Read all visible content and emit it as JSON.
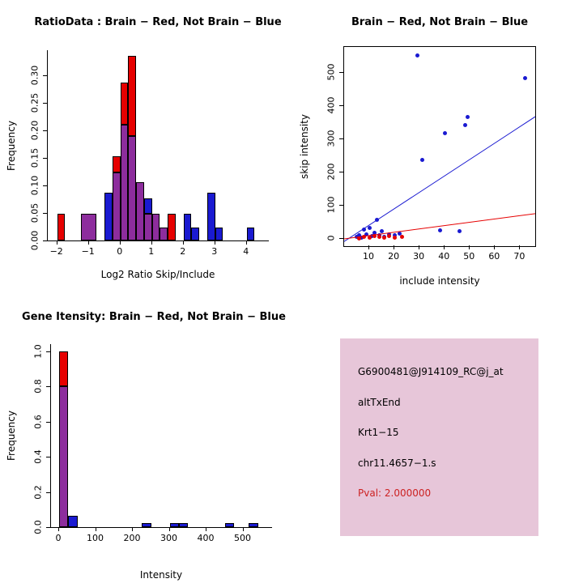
{
  "palette": {
    "red": "#e60000",
    "blue": "#1a1ad1",
    "purple": "#8d2d9d",
    "axis_black": "#000000",
    "info_box_pink": "#e7c6d9",
    "pval_red": "#cc2222"
  },
  "chart_data": [
    {
      "id": "ratio-histogram",
      "type": "bar",
      "title": "RatioData : Brain − Red, Not Brain − Blue",
      "xlabel": "Log2 Ratio Skip/Include",
      "ylabel": "Frequency",
      "xlim": [
        -2.3,
        4.7
      ],
      "ylim": [
        0,
        0.345
      ],
      "grid": false,
      "xticks": [
        -2,
        -1,
        0,
        1,
        2,
        3,
        4
      ],
      "xtick_labels": [
        "−2",
        "−1",
        "0",
        "1",
        "2",
        "3",
        "4"
      ],
      "yticks": [
        0,
        0.05,
        0.1,
        0.15,
        0.2,
        0.25,
        0.3
      ],
      "ytick_labels": [
        "0.00",
        "0.05",
        "0.10",
        "0.15",
        "0.20",
        "0.25",
        "0.30"
      ],
      "bars": [
        {
          "x0": -2.0,
          "x1": -1.75,
          "segments": [
            {
              "color": "red",
              "h": 0.048
            }
          ]
        },
        {
          "x0": -1.25,
          "x1": -0.75,
          "segments": [
            {
              "color": "purple",
              "h": 0.048
            }
          ]
        },
        {
          "x0": -0.5,
          "x1": -0.25,
          "segments": [
            {
              "color": "blue",
              "h": 0.086
            }
          ]
        },
        {
          "x0": -0.25,
          "x1": 0,
          "segments": [
            {
              "color": "purple",
              "h": 0.124
            },
            {
              "color": "red",
              "h": 0.028
            }
          ]
        },
        {
          "x0": 0,
          "x1": 0.25,
          "segments": [
            {
              "color": "purple",
              "h": 0.21
            },
            {
              "color": "red",
              "h": 0.076
            }
          ]
        },
        {
          "x0": 0.25,
          "x1": 0.5,
          "segments": [
            {
              "color": "purple",
              "h": 0.19
            },
            {
              "color": "red",
              "h": 0.145
            }
          ]
        },
        {
          "x0": 0.5,
          "x1": 0.75,
          "segments": [
            {
              "color": "purple",
              "h": 0.105
            }
          ]
        },
        {
          "x0": 0.75,
          "x1": 1,
          "segments": [
            {
              "color": "purple",
              "h": 0.048
            },
            {
              "color": "blue",
              "h": 0.028
            }
          ]
        },
        {
          "x0": 1,
          "x1": 1.25,
          "segments": [
            {
              "color": "purple",
              "h": 0.048
            }
          ]
        },
        {
          "x0": 1.25,
          "x1": 1.5,
          "segments": [
            {
              "color": "purple",
              "h": 0.024
            }
          ]
        },
        {
          "x0": 1.5,
          "x1": 1.75,
          "segments": [
            {
              "color": "red",
              "h": 0.048
            }
          ]
        },
        {
          "x0": 2,
          "x1": 2.25,
          "segments": [
            {
              "color": "blue",
              "h": 0.048
            }
          ]
        },
        {
          "x0": 2.25,
          "x1": 2.5,
          "segments": [
            {
              "color": "blue",
              "h": 0.024
            }
          ]
        },
        {
          "x0": 2.75,
          "x1": 3,
          "segments": [
            {
              "color": "blue",
              "h": 0.086
            }
          ]
        },
        {
          "x0": 3,
          "x1": 3.25,
          "segments": [
            {
              "color": "blue",
              "h": 0.024
            }
          ]
        },
        {
          "x0": 4,
          "x1": 4.25,
          "segments": [
            {
              "color": "blue",
              "h": 0.024
            }
          ]
        }
      ]
    },
    {
      "id": "intensity-scatter",
      "type": "scatter",
      "title": "Brain − Red, Not Brain − Blue",
      "xlabel": "include intensity",
      "ylabel": "skip intensity",
      "xlim": [
        0,
        76
      ],
      "ylim": [
        -22,
        578
      ],
      "grid": false,
      "xticks": [
        10,
        20,
        30,
        40,
        50,
        60,
        70
      ],
      "xtick_labels": [
        "10",
        "20",
        "30",
        "40",
        "50",
        "60",
        "70"
      ],
      "yticks": [
        0,
        100,
        200,
        300,
        400,
        500
      ],
      "ytick_labels": [
        "0",
        "100",
        "200",
        "300",
        "400",
        "500"
      ],
      "series": [
        {
          "name": "Not Brain",
          "color": "blue",
          "points": [
            [
              5,
              6
            ],
            [
              6,
              12
            ],
            [
              7,
              4
            ],
            [
              8,
              28
            ],
            [
              9,
              14
            ],
            [
              10,
              34
            ],
            [
              11,
              8
            ],
            [
              12,
              18
            ],
            [
              13,
              57
            ],
            [
              14,
              10
            ],
            [
              15,
              22
            ],
            [
              16,
              6
            ],
            [
              18,
              14
            ],
            [
              20,
              10
            ],
            [
              22,
              16
            ],
            [
              29,
              553
            ],
            [
              31,
              238
            ],
            [
              38,
              26
            ],
            [
              40,
              318
            ],
            [
              46,
              22
            ],
            [
              48,
              343
            ],
            [
              49,
              368
            ],
            [
              72,
              483
            ]
          ]
        },
        {
          "name": "Brain",
          "color": "red",
          "points": [
            [
              6,
              2
            ],
            [
              8,
              7
            ],
            [
              10,
              4
            ],
            [
              12,
              9
            ],
            [
              14,
              5
            ],
            [
              16,
              3
            ],
            [
              18,
              8
            ],
            [
              20,
              4
            ],
            [
              23,
              6
            ]
          ]
        }
      ],
      "lines": [
        {
          "color": "blue",
          "x0": 0,
          "y0": -8,
          "x1": 76,
          "y1": 368
        },
        {
          "color": "red",
          "x0": 0,
          "y0": 0,
          "x1": 76,
          "y1": 76
        }
      ]
    },
    {
      "id": "gene-intensity-histogram",
      "type": "bar",
      "title": "Gene Itensity: Brain − Red, Not Brain − Blue",
      "xlabel": "Intensity",
      "ylabel": "Frequency",
      "xlim": [
        -22,
        578
      ],
      "ylim": [
        0,
        1.04
      ],
      "grid": false,
      "xticks": [
        0,
        100,
        200,
        300,
        400,
        500
      ],
      "xtick_labels": [
        "0",
        "100",
        "200",
        "300",
        "400",
        "500"
      ],
      "yticks": [
        0,
        0.2,
        0.4,
        0.6,
        0.8,
        1.0
      ],
      "ytick_labels": [
        "0.0",
        "0.2",
        "0.4",
        "0.6",
        "0.8",
        "1.0"
      ],
      "bars": [
        {
          "x0": 0,
          "x1": 25,
          "segments": [
            {
              "color": "purple",
              "h": 0.8
            },
            {
              "color": "red",
              "h": 0.2
            }
          ]
        },
        {
          "x0": 25,
          "x1": 50,
          "segments": [
            {
              "color": "blue",
              "h": 0.065
            }
          ]
        },
        {
          "x0": 225,
          "x1": 250,
          "segments": [
            {
              "color": "blue",
              "h": 0.022
            }
          ]
        },
        {
          "x0": 300,
          "x1": 325,
          "segments": [
            {
              "color": "blue",
              "h": 0.022
            }
          ]
        },
        {
          "x0": 325,
          "x1": 350,
          "segments": [
            {
              "color": "blue",
              "h": 0.022
            }
          ]
        },
        {
          "x0": 450,
          "x1": 475,
          "segments": [
            {
              "color": "blue",
              "h": 0.022
            }
          ]
        },
        {
          "x0": 515,
          "x1": 540,
          "segments": [
            {
              "color": "blue",
              "h": 0.022
            }
          ]
        }
      ]
    }
  ],
  "info_panel": {
    "background": "#e7c6d9",
    "lines": [
      {
        "text": "G6900481@J914109_RC@j_at",
        "color": "#000000"
      },
      {
        "text": "altTxEnd",
        "color": "#000000"
      },
      {
        "text": "Krt1−15",
        "color": "#000000"
      },
      {
        "text": "chr11.4657−1.s",
        "color": "#000000"
      },
      {
        "text": "Pval: 2.000000",
        "color": "#cc2222"
      }
    ]
  }
}
